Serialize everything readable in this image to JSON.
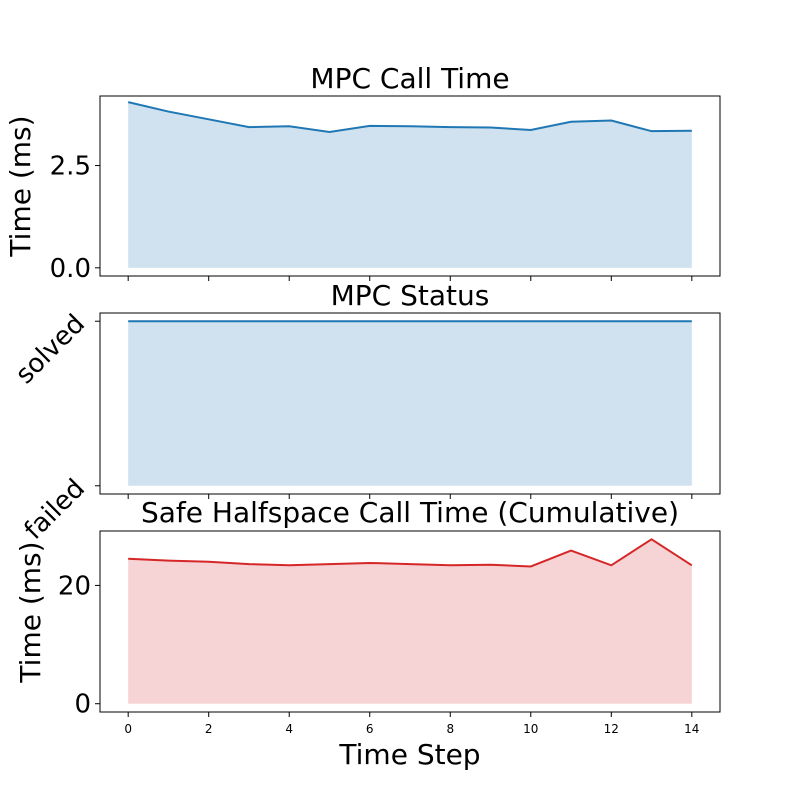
{
  "chart_data": [
    {
      "type": "area",
      "title": "MPC Call Time",
      "xlabel": "",
      "ylabel": "Time (ms)",
      "x": [
        0,
        1,
        2,
        3,
        4,
        5,
        6,
        7,
        8,
        9,
        10,
        11,
        12,
        13,
        14
      ],
      "values": [
        4.05,
        3.82,
        3.63,
        3.44,
        3.46,
        3.32,
        3.47,
        3.46,
        3.44,
        3.43,
        3.37,
        3.57,
        3.6,
        3.34,
        3.35
      ],
      "color": "#1f77b4",
      "fill": "#d0e2ef",
      "xlim": [
        -0.7,
        14.7
      ],
      "ylim": [
        -0.2,
        4.2
      ],
      "yticks": [
        {
          "value": 0.0,
          "label": "0.0"
        },
        {
          "value": 2.5,
          "label": "2.5"
        }
      ],
      "xticks_labeled": false
    },
    {
      "type": "area",
      "title": "MPC Status",
      "xlabel": "",
      "ylabel": "",
      "x": [
        0,
        1,
        2,
        3,
        4,
        5,
        6,
        7,
        8,
        9,
        10,
        11,
        12,
        13,
        14
      ],
      "values": [
        1,
        1,
        1,
        1,
        1,
        1,
        1,
        1,
        1,
        1,
        1,
        1,
        1,
        1,
        1
      ],
      "color": "#1f77b4",
      "fill": "#d0e2ef",
      "xlim": [
        -0.7,
        14.7
      ],
      "ylim": [
        -0.05,
        1.05
      ],
      "yticks": [
        {
          "value": 0,
          "label": "failed"
        },
        {
          "value": 1,
          "label": "solved"
        }
      ],
      "ytick_rotation": -45,
      "xticks_labeled": false
    },
    {
      "type": "area",
      "title": "Safe Halfspace Call Time (Cumulative)",
      "xlabel": "Time Step",
      "ylabel": "Time (ms)",
      "x": [
        0,
        1,
        2,
        3,
        4,
        5,
        6,
        7,
        8,
        9,
        10,
        11,
        12,
        13,
        14
      ],
      "values": [
        24.5,
        24.2,
        24.0,
        23.6,
        23.4,
        23.6,
        23.8,
        23.6,
        23.4,
        23.5,
        23.2,
        25.9,
        23.4,
        27.8,
        23.4
      ],
      "color": "#d62728",
      "fill": "#f6d3d4",
      "xlim": [
        -0.7,
        14.7
      ],
      "ylim": [
        -1.4,
        29.2
      ],
      "yticks": [
        {
          "value": 0,
          "label": "0"
        },
        {
          "value": 20,
          "label": "20"
        }
      ],
      "xticks": [
        {
          "value": 0,
          "label": "0"
        },
        {
          "value": 2,
          "label": "2"
        },
        {
          "value": 4,
          "label": "4"
        },
        {
          "value": 6,
          "label": "6"
        },
        {
          "value": 8,
          "label": "8"
        },
        {
          "value": 10,
          "label": "10"
        },
        {
          "value": 12,
          "label": "12"
        },
        {
          "value": 14,
          "label": "14"
        }
      ],
      "xticks_labeled": true
    }
  ]
}
